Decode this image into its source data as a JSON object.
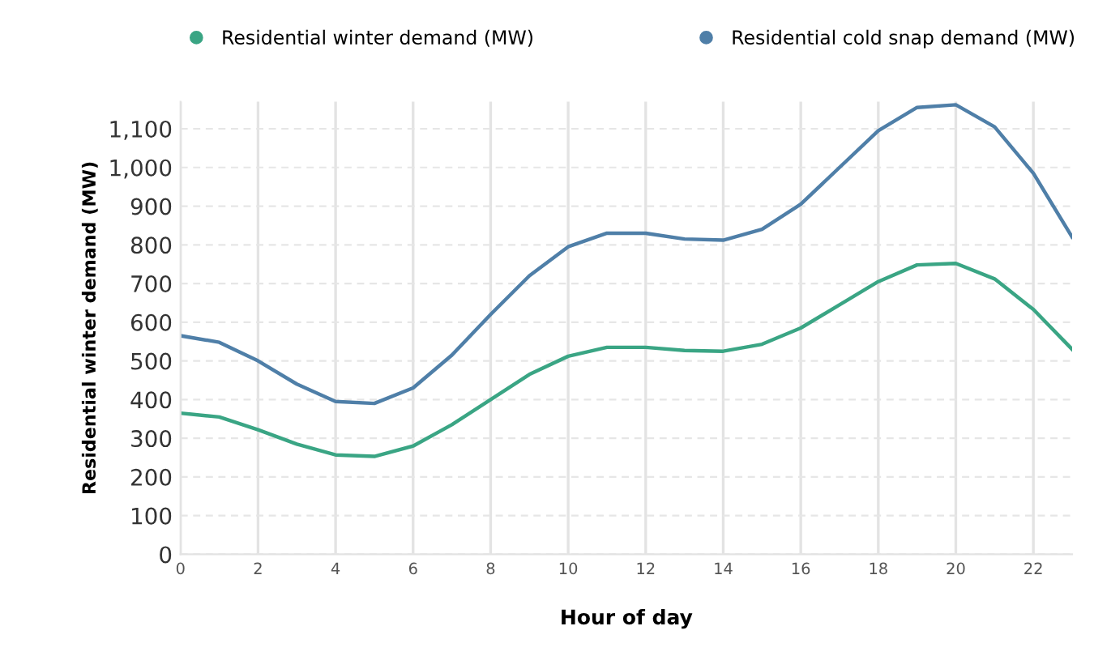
{
  "chart_data": {
    "type": "line",
    "xlabel": "Hour of day",
    "ylabel": "Residential winter demand (MW)",
    "x": [
      0,
      1,
      2,
      3,
      4,
      5,
      6,
      7,
      8,
      9,
      10,
      11,
      12,
      13,
      14,
      15,
      16,
      17,
      18,
      19,
      20,
      21,
      22,
      23
    ],
    "series": [
      {
        "name": "Residential winter demand (MW)",
        "color": "#3aa584",
        "values": [
          365,
          355,
          322,
          285,
          257,
          253,
          280,
          335,
          400,
          465,
          512,
          535,
          535,
          527,
          525,
          543,
          585,
          645,
          705,
          748,
          752,
          712,
          633,
          530
        ]
      },
      {
        "name": "Residential cold snap demand (MW)",
        "color": "#4f7fa8",
        "values": [
          565,
          548,
          500,
          440,
          395,
          390,
          430,
          515,
          620,
          720,
          795,
          830,
          830,
          815,
          812,
          840,
          905,
          1000,
          1095,
          1155,
          1162,
          1105,
          985,
          820
        ]
      }
    ],
    "xlim": [
      0,
      23
    ],
    "xticks": [
      0,
      2,
      4,
      6,
      8,
      10,
      12,
      14,
      16,
      18,
      20,
      22
    ],
    "ylim": [
      0,
      1170
    ],
    "yticks": [
      0,
      100,
      200,
      300,
      400,
      500,
      600,
      700,
      800,
      900,
      {
        "value": 1000,
        "label": "1,000"
      },
      {
        "value": 1100,
        "label": "1,100"
      }
    ],
    "grid": true,
    "legend": "top"
  }
}
